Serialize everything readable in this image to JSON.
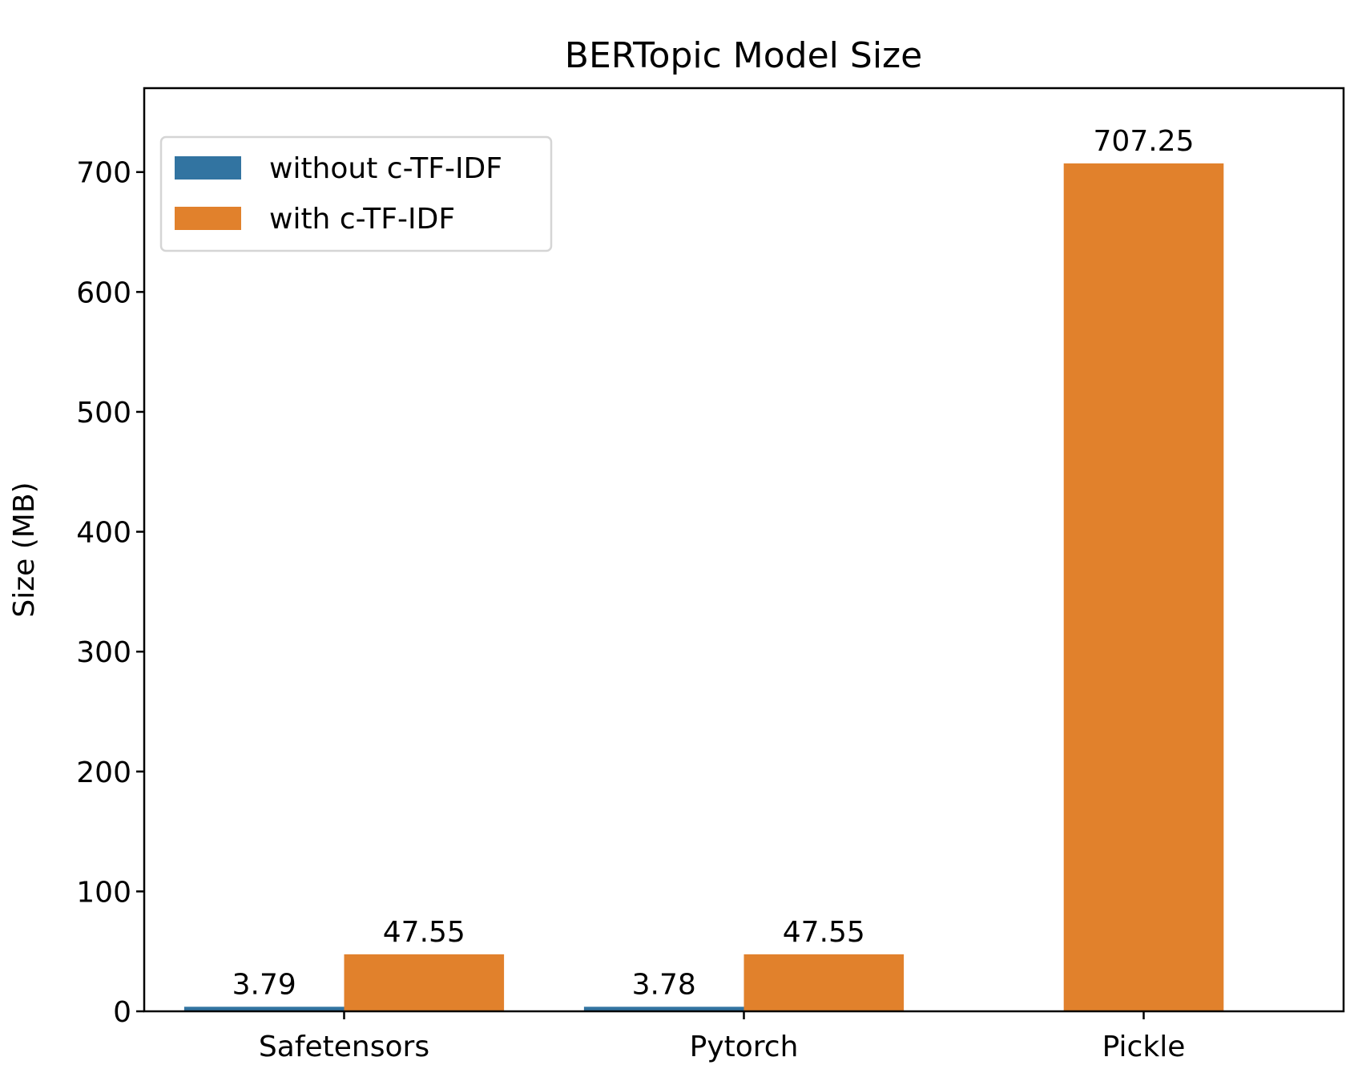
{
  "chart_data": {
    "type": "bar",
    "title": "BERTopic Model Size",
    "xlabel": "",
    "ylabel": "Size (MB)",
    "ylim": [
      0,
      770
    ],
    "yticks": [
      0,
      100,
      200,
      300,
      400,
      500,
      600,
      700
    ],
    "categories": [
      "Safetensors",
      "Pytorch",
      "Pickle"
    ],
    "grid": false,
    "legend_placement": "top-left",
    "series": [
      {
        "name": "without c-TF-IDF",
        "color": "#3274a1",
        "values": [
          3.79,
          3.78,
          null
        ],
        "labels": [
          "3.79",
          "3.78",
          ""
        ]
      },
      {
        "name": "with c-TF-IDF",
        "color": "#e1812c",
        "values": [
          47.55,
          47.55,
          707.25
        ],
        "labels": [
          "47.55",
          "47.55",
          "707.25"
        ]
      }
    ]
  }
}
